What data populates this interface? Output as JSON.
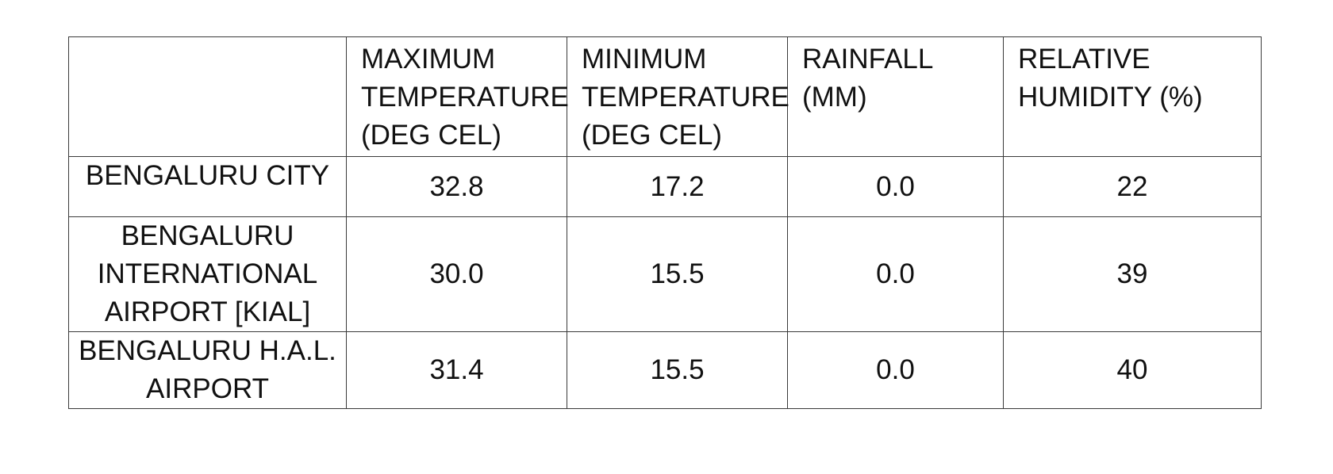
{
  "table": {
    "headers": [
      "",
      "MAXIMUM\nTEMPERATURE\n(DEG CEL)",
      "MINIMUM\nTEMPERATURE\n(DEG CEL)",
      "RAINFALL\n(MM)",
      "RELATIVE\nHUMIDITY (%)"
    ],
    "rows": [
      {
        "station": "BENGALURU CITY",
        "max_temp": "32.8",
        "min_temp": "17.2",
        "rainfall": "0.0",
        "humidity": "22"
      },
      {
        "station": "BENGALURU\nINTERNATIONAL\nAIRPORT [KIAL]",
        "max_temp": "30.0",
        "min_temp": "15.5",
        "rainfall": "0.0",
        "humidity": "39"
      },
      {
        "station": "BENGALURU  H.A.L.\nAIRPORT",
        "max_temp": "31.4",
        "min_temp": "15.5",
        "rainfall": "0.0",
        "humidity": "40"
      }
    ]
  }
}
